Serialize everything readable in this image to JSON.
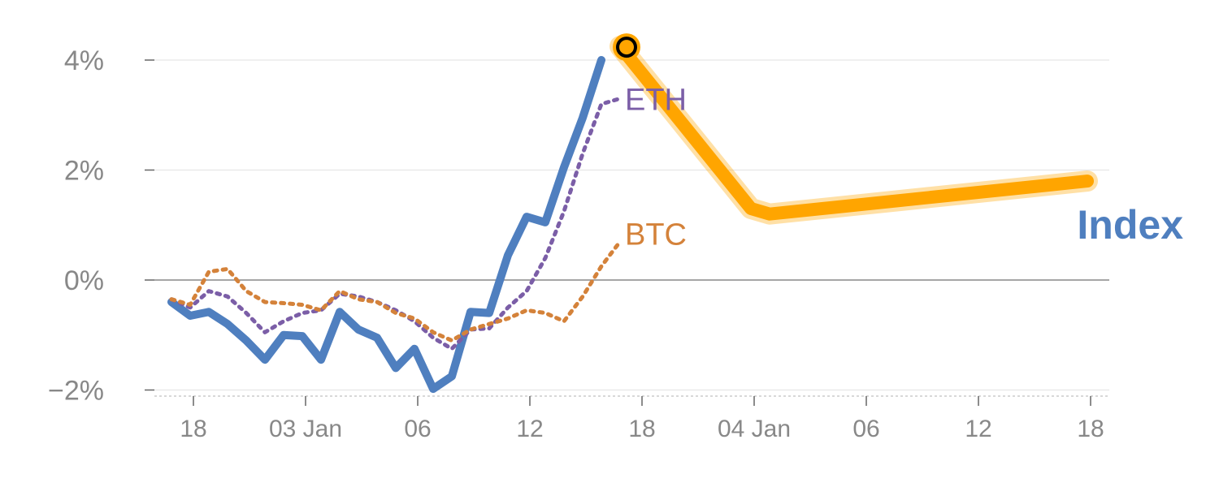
{
  "chart_data": {
    "type": "line",
    "title": "",
    "xlabel": "",
    "ylabel": "",
    "ylim": [
      -2,
      4.3
    ],
    "grid": true,
    "y_ticks": [
      -2,
      0,
      2,
      4
    ],
    "y_tick_labels": [
      "−2%",
      "0%",
      "2%",
      "4%"
    ],
    "x_tick_labels": [
      "18",
      "03 Jan",
      "06",
      "12",
      "18",
      "04 Jan",
      "06",
      "12",
      "18"
    ],
    "x_ticks": [
      1,
      7,
      13,
      19,
      25,
      31,
      37,
      43,
      49
    ],
    "series": [
      {
        "name": "Index",
        "color": "#4f7fbf",
        "style": "solid",
        "x": [
          0,
          1,
          2,
          3,
          4,
          5,
          6,
          7,
          8,
          9,
          10,
          11,
          12,
          13,
          14,
          15,
          16,
          17,
          18,
          19,
          20,
          21,
          22,
          23
        ],
        "values": [
          -0.4,
          -0.65,
          -0.58,
          -0.8,
          -1.1,
          -1.45,
          -1.0,
          -1.02,
          -1.45,
          -0.58,
          -0.9,
          -1.05,
          -1.6,
          -1.25,
          -1.98,
          -1.75,
          -0.58,
          -0.6,
          0.45,
          1.15,
          1.05,
          2.05,
          2.95,
          4.0
        ]
      },
      {
        "name": "ETH",
        "color": "#7b5ea7",
        "style": "dotted",
        "x": [
          0,
          1,
          2,
          3,
          4,
          5,
          6,
          7,
          8,
          9,
          10,
          11,
          12,
          13,
          14,
          15,
          16,
          17,
          18,
          19,
          20,
          21,
          22,
          23,
          24
        ],
        "values": [
          -0.35,
          -0.5,
          -0.2,
          -0.3,
          -0.6,
          -0.95,
          -0.75,
          -0.6,
          -0.55,
          -0.25,
          -0.3,
          -0.4,
          -0.55,
          -0.75,
          -1.05,
          -1.25,
          -0.9,
          -0.88,
          -0.5,
          -0.2,
          0.4,
          1.25,
          2.3,
          3.2,
          3.3
        ]
      },
      {
        "name": "BTC",
        "color": "#d4823a",
        "style": "dotted",
        "x": [
          0,
          1,
          2,
          3,
          4,
          5,
          6,
          7,
          8,
          9,
          10,
          11,
          12,
          13,
          14,
          15,
          16,
          17,
          18,
          19,
          20,
          21,
          22,
          23,
          24
        ],
        "values": [
          -0.35,
          -0.45,
          0.15,
          0.2,
          -0.2,
          -0.4,
          -0.42,
          -0.45,
          -0.55,
          -0.2,
          -0.35,
          -0.4,
          -0.6,
          -0.7,
          -0.95,
          -1.1,
          -0.9,
          -0.8,
          -0.7,
          -0.55,
          -0.6,
          -0.75,
          -0.3,
          0.25,
          0.7
        ]
      },
      {
        "name": "Index",
        "color": "#ffa500",
        "style": "highlight",
        "x": [
          24,
          31,
          32,
          49
        ],
        "values": [
          4.25,
          1.3,
          1.2,
          1.8
        ]
      }
    ],
    "highlight_point": {
      "x": 24,
      "value": 4.25
    },
    "labels": {
      "eth": "ETH",
      "btc": "BTC",
      "index": "Index"
    }
  }
}
